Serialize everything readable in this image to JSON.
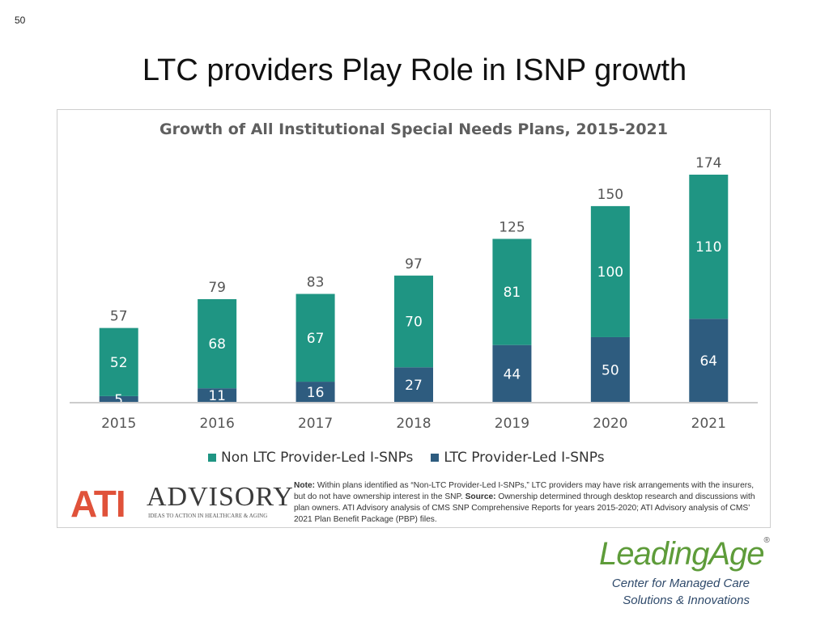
{
  "slide": {
    "number": "50",
    "title": "LTC providers Play Role in ISNP growth"
  },
  "chart_data": {
    "type": "bar",
    "stacked": true,
    "title": "Growth of All Institutional Special Needs Plans, 2015-2021",
    "categories": [
      "2015",
      "2016",
      "2017",
      "2018",
      "2019",
      "2020",
      "2021"
    ],
    "series": [
      {
        "name": "LTC Provider-Led I-SNPs",
        "color": "#2e5c7f",
        "values": [
          5,
          11,
          16,
          27,
          44,
          50,
          64
        ]
      },
      {
        "name": "Non LTC Provider-Led I-SNPs",
        "color": "#1f9583",
        "values": [
          52,
          68,
          67,
          70,
          81,
          100,
          110
        ]
      }
    ],
    "totals": [
      57,
      79,
      83,
      97,
      125,
      150,
      174
    ],
    "ylim": [
      0,
      174
    ],
    "legend": [
      "Non LTC Provider-Led I-SNPs",
      "LTC Provider-Led I-SNPs"
    ],
    "legend_position": "bottom"
  },
  "note": {
    "label": "Note:",
    "text1": " Within plans identified as “Non-LTC Provider-Led I-SNPs,” LTC providers may have risk arrangements with the insurers, but do not have ownership interest in the SNP. ",
    "source_label": "Source:",
    "text2": " Ownership determined through desktop research and discussions with plan owners. ATI Advisory analysis of CMS SNP Comprehensive Reports for years 2015-2020; ATI Advisory analysis of CMS’ 2021 Plan Benefit Package (PBP) files."
  },
  "ati_logo": {
    "mark": "ATI",
    "word": "ADVISORY",
    "tagline": "IDEAS TO ACTION IN HEALTHCARE & AGING"
  },
  "leadingage": {
    "name": "LeadingAge",
    "reg": "®",
    "line1": "Center for Managed Care",
    "line2": "Solutions & Innovations"
  }
}
